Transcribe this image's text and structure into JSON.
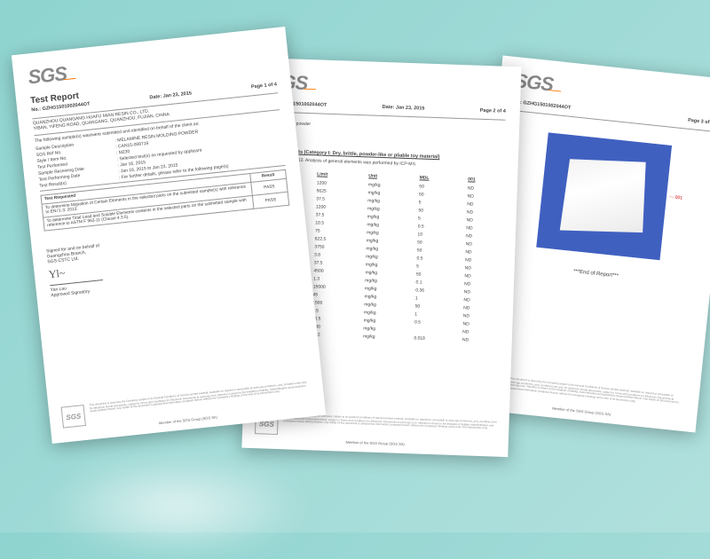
{
  "logo": "SGS",
  "report_title": "Test Report",
  "report_no": "No.: GZHG1501002044OT",
  "date": "Date: Jan 23, 2015",
  "page1_of": "Page 1 of 4",
  "page2_of": "Page 2 of 4",
  "page3_of": "Page 3 of 4",
  "addr_line1": "QUANZHOU QUANGANG HUAFU MIAN RESIN CO., LTD.",
  "addr_line2": "YIBAN, YIFENG ROAD, QUANGANG, QUANZHOU, FUJIAN, CHINA",
  "intro": "The following sample(s) was/were submitted and identified on behalf of the client as:",
  "fields": [
    {
      "label": "Sample Description",
      "value": "MELAMINE RESIN MOLDING POWDER"
    },
    {
      "label": "SGS Ref No.",
      "value": "CAN15-008719"
    },
    {
      "label": "Style / Item No.",
      "value": "M230"
    },
    {
      "label": "Test Performed",
      "value": "Selected test(s) as requested by applicant"
    },
    {
      "label": "Sample Receiving Date",
      "value": "Jan 16, 2015"
    },
    {
      "label": "Test Performing Date",
      "value": "Jan 16, 2015 to Jan 23, 2015"
    },
    {
      "label": "Test Result(s)",
      "value": "For further details, please refer to the following page(s)"
    }
  ],
  "test_requested_head": "Test Requested",
  "result_head": "Result",
  "tests": [
    {
      "desc": "To determine Migration of Certain Elements in the selected parts on the submitted sample(s) with reference to EN71-3: 2013.",
      "result": "PASS"
    },
    {
      "desc": "To determine Total Lead and Soluble Elements contents in the selected parts on the submitted sample with reference to ASTM F 963-11 (Clause 4.3.5).",
      "result": "PASS"
    }
  ],
  "sig_intro": "Signed for and on behalf of",
  "sig_branch": "Guangzhou Branch,",
  "sig_company": "SGS-CSTC Ltd.",
  "sig_name": "Yan Lau",
  "sig_role": "Approved Signatory",
  "footer_member": "Member of the SGS Group (SGS SA)",
  "footer_fineprint": "This document is issued by the Company subject to its General Conditions of Service printed overleaf, available on request or accessible at www.sgs.com/terms_and_conditions.htm and, for electronic format documents, subject to Terms and Conditions for Electronic Documents at www.sgs.com. Attention is drawn to the limitation of liability, indemnification and jurisdiction issues defined therein. Any holder of this document is advised that information contained hereon reflects the Company's findings at the time of its intervention only.",
  "p2_desc_head": "Description",
  "p2_desc_no": "001",
  "p2_desc_val": "White powder",
  "p2_notes": [
    "ection Limit",
    "ed ( < MDL )"
  ],
  "p2_section": "ertain Elements (Category I: Dry, brittle, powder-like or pliable toy material)",
  "p2_method": "ce to EN71-3:2013. Analysis of general elements was performed by ICP-MS.",
  "elements": {
    "cols": [
      "Limit",
      "Unit",
      "MDL",
      "001"
    ],
    "rows": [
      [
        "",
        "1200",
        "mg/kg",
        "50",
        "ND"
      ],
      [
        "",
        "5625",
        "mg/kg",
        "50",
        "ND"
      ],
      [
        "",
        "37.5",
        "mg/kg",
        "5",
        "ND"
      ],
      [
        "",
        "1200",
        "mg/kg",
        "50",
        "ND"
      ],
      [
        "Cr (III))",
        "37.5",
        "mg/kg",
        "5",
        "ND"
      ],
      [
        "",
        "10.5",
        "mg/kg",
        "0.5",
        "ND"
      ],
      [
        "",
        "75",
        "mg/kg",
        "10",
        "ND"
      ],
      [
        "",
        "622.5",
        "mg/kg",
        "50",
        "ND"
      ],
      [
        "",
        "3750",
        "mg/kg",
        "50",
        "ND"
      ],
      [
        "",
        "3.8",
        "mg/kg",
        "0.5",
        "ND"
      ],
      [
        "",
        "37.5",
        "mg/kg",
        "5",
        "ND"
      ],
      [
        "",
        "4500",
        "mg/kg",
        "50",
        "ND"
      ],
      [
        "",
        "1.3",
        "mg/kg",
        "0.1",
        "ND"
      ],
      [
        "s)",
        "15000",
        "mg/kg",
        "0.36",
        "ND"
      ],
      [
        "Sb)",
        "45",
        "mg/kg",
        "1",
        "ND"
      ],
      [
        "",
        "1500",
        "mg/kg",
        "50",
        "ND"
      ],
      [
        "",
        "7.5",
        "mg/kg",
        "1",
        "ND"
      ],
      [
        "Tin)",
        "13.5",
        "mg/kg",
        "0.5",
        "ND"
      ],
      [
        "",
        "0.90",
        "mg/kg",
        "",
        "ND"
      ],
      [
        "um (VI) (Cr (VI))",
        "0.02",
        "mg/kg",
        "0.018",
        "ND"
      ]
    ]
  },
  "photo_label": "001",
  "end_report": "***End of Report***"
}
